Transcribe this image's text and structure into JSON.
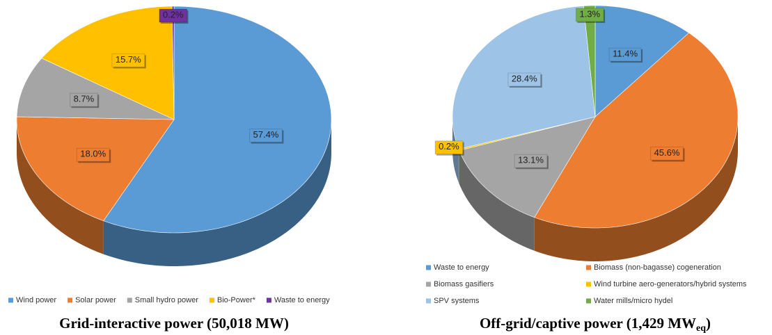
{
  "chart_data": [
    {
      "type": "pie",
      "title": "Grid-interactive power (50,018 MW)",
      "categories": [
        "Wind power",
        "Solar power",
        "Small hydro power",
        "Bio-Power*",
        "Waste to energy"
      ],
      "values": [
        57.4,
        18.0,
        8.7,
        15.7,
        0.2
      ],
      "value_labels": [
        "57.4%",
        "18.0%",
        "8.7%",
        "15.7%",
        "0.2%"
      ],
      "colors": [
        "#5b9bd5",
        "#ed7d31",
        "#a5a5a5",
        "#ffc000",
        "#7030a0"
      ],
      "legend": "bottom"
    },
    {
      "type": "pie",
      "title": "Off-grid/captive power (1,429 MW",
      "title_subscript": "eq",
      "title_end": ")",
      "categories": [
        "Waste to energy",
        "Biomass (non-bagasse) cogeneration",
        "Biomass gasifiers",
        "Wind turbine aero-generators/hybrid systems",
        "SPV systems",
        "Water mills/micro hydel"
      ],
      "values": [
        11.4,
        45.6,
        13.1,
        0.2,
        28.4,
        1.3
      ],
      "value_labels": [
        "11.4%",
        "45.6%",
        "13.1%",
        "0.2%",
        "28.4%",
        "1.3%"
      ],
      "colors": [
        "#5b9bd5",
        "#ed7d31",
        "#a5a5a5",
        "#ffc000",
        "#9dc3e6",
        "#70ad47"
      ],
      "legend": "bottom"
    }
  ]
}
